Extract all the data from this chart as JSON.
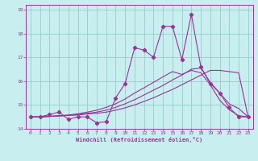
{
  "title": "",
  "xlabel": "Windchill (Refroidissement éolien,°C)",
  "background_color": "#c8eef0",
  "grid_color": "#99cccc",
  "line_color": "#993399",
  "xlim": [
    -0.5,
    23.5
  ],
  "ylim": [
    14.0,
    19.2
  ],
  "yticks": [
    14,
    15,
    16,
    17,
    18,
    19
  ],
  "xticks": [
    0,
    1,
    2,
    3,
    4,
    5,
    6,
    7,
    8,
    9,
    10,
    11,
    12,
    13,
    14,
    15,
    16,
    17,
    18,
    19,
    20,
    21,
    22,
    23
  ],
  "x": [
    0,
    1,
    2,
    3,
    4,
    5,
    6,
    7,
    8,
    9,
    10,
    11,
    12,
    13,
    14,
    15,
    16,
    17,
    18,
    19,
    20,
    21,
    22,
    23
  ],
  "y_main": [
    14.5,
    14.5,
    14.6,
    14.7,
    14.4,
    14.5,
    14.5,
    14.25,
    14.3,
    15.3,
    15.9,
    17.4,
    17.3,
    17.0,
    18.3,
    18.3,
    16.9,
    18.8,
    16.6,
    15.9,
    15.5,
    14.9,
    14.5,
    14.5
  ],
  "y_line2": [
    14.5,
    14.5,
    14.52,
    14.54,
    14.56,
    14.58,
    14.62,
    14.65,
    14.7,
    14.78,
    14.88,
    15.0,
    15.15,
    15.3,
    15.48,
    15.65,
    15.85,
    16.05,
    16.25,
    16.45,
    16.45,
    16.4,
    16.35,
    14.5
  ],
  "y_line3": [
    14.5,
    14.5,
    14.52,
    14.54,
    14.56,
    14.6,
    14.65,
    14.7,
    14.78,
    14.9,
    15.05,
    15.22,
    15.42,
    15.62,
    15.82,
    16.05,
    16.25,
    16.5,
    16.55,
    15.95,
    15.5,
    15.05,
    14.85,
    14.5
  ],
  "y_line4": [
    14.5,
    14.5,
    14.52,
    14.55,
    14.58,
    14.63,
    14.7,
    14.78,
    14.9,
    15.05,
    15.25,
    15.5,
    15.72,
    15.95,
    16.18,
    16.4,
    16.28,
    16.45,
    16.35,
    15.85,
    15.2,
    14.8,
    14.55,
    14.5
  ]
}
